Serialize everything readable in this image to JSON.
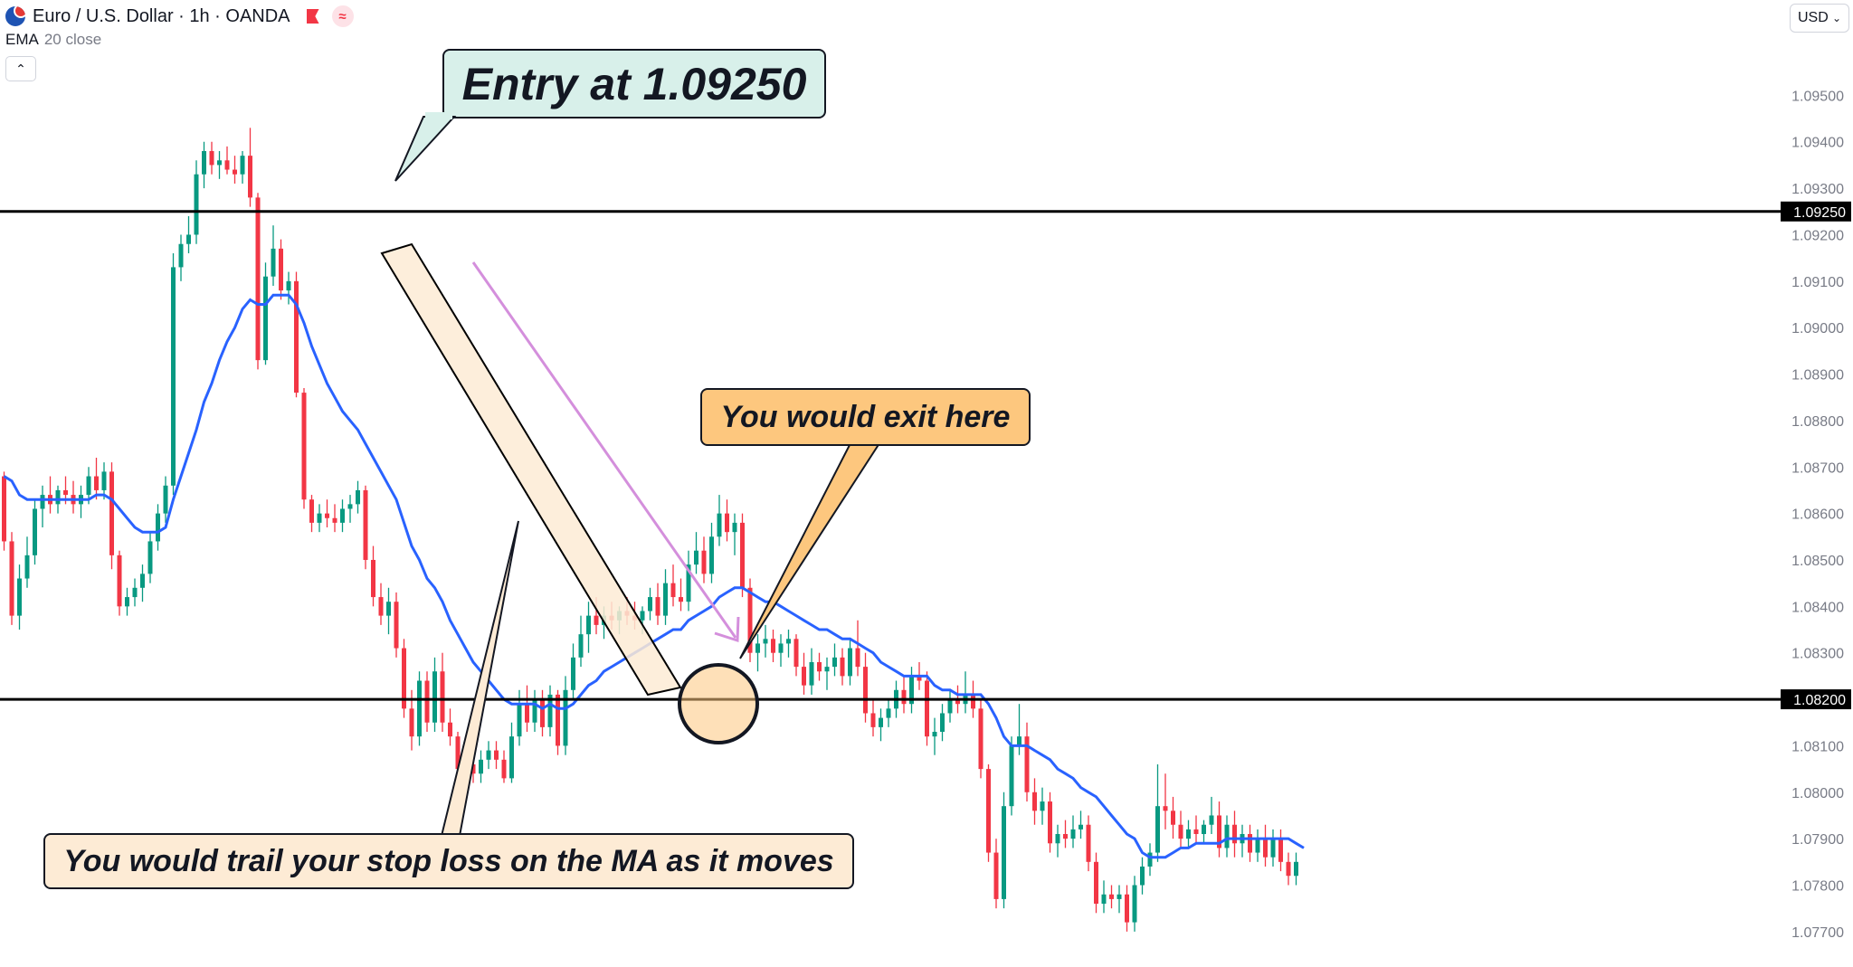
{
  "header": {
    "symbol_title": "Euro / U.S. Dollar · 1h · OANDA",
    "indicator_name": "EMA",
    "indicator_params": "20 close",
    "currency": "USD",
    "flag_icon": "eu-us-flag-icon",
    "bookmark_icon": "flag-icon",
    "indicator_icon": "wave-icon"
  },
  "annotations": {
    "entry": "Entry at 1.09250",
    "exit": "You would exit here",
    "trail": "You would trail your stop loss on the MA as it moves"
  },
  "colors": {
    "up": "#089981",
    "down": "#f23645",
    "ema": "#2962ff",
    "level_line": "#000000",
    "arrow": "#d48fdc",
    "entry_callout": "#d8f0ea",
    "exit_callout": "#fdc77e",
    "trail_callout": "#fdebd5",
    "channel_fill": "#fdebd5"
  },
  "chart_data": {
    "type": "candlestick",
    "title": "Euro / U.S. Dollar · 1h · OANDA",
    "y_ticks": [
      "1.09500",
      "1.09400",
      "1.09300",
      "1.09200",
      "1.09100",
      "1.09000",
      "1.08900",
      "1.08800",
      "1.08700",
      "1.08600",
      "1.08500",
      "1.08400",
      "1.08300",
      "1.08100",
      "1.08000",
      "1.07900",
      "1.07800",
      "1.07700"
    ],
    "ylim": [
      1.0769,
      1.09565
    ],
    "horizontal_levels": [
      {
        "value": 1.0925,
        "label": "1.09250"
      },
      {
        "value": 1.082,
        "label": "1.08200"
      }
    ],
    "candles": [
      [
        1.0868,
        1.0869,
        1.0852,
        1.0854
      ],
      [
        1.0854,
        1.0856,
        1.0836,
        1.0838
      ],
      [
        1.0838,
        1.0849,
        1.0835,
        1.0846
      ],
      [
        1.0846,
        1.0855,
        1.0844,
        1.0851
      ],
      [
        1.0851,
        1.0863,
        1.0849,
        1.0861
      ],
      [
        1.0861,
        1.0866,
        1.0857,
        1.0864
      ],
      [
        1.0864,
        1.0868,
        1.086,
        1.0862
      ],
      [
        1.0862,
        1.0866,
        1.086,
        1.0865
      ],
      [
        1.0865,
        1.0868,
        1.0862,
        1.0864
      ],
      [
        1.0864,
        1.0867,
        1.086,
        1.0862
      ],
      [
        1.0862,
        1.0866,
        1.0859,
        1.0864
      ],
      [
        1.0864,
        1.087,
        1.0862,
        1.0868
      ],
      [
        1.0868,
        1.0872,
        1.0863,
        1.0865
      ],
      [
        1.0865,
        1.0871,
        1.0863,
        1.0869
      ],
      [
        1.0869,
        1.0871,
        1.0848,
        1.0851
      ],
      [
        1.0851,
        1.0852,
        1.0838,
        1.084
      ],
      [
        1.084,
        1.0844,
        1.0838,
        1.0842
      ],
      [
        1.0842,
        1.0846,
        1.084,
        1.0844
      ],
      [
        1.0844,
        1.0849,
        1.0841,
        1.0847
      ],
      [
        1.0847,
        1.0856,
        1.0845,
        1.0854
      ],
      [
        1.0854,
        1.0862,
        1.0852,
        1.086
      ],
      [
        1.086,
        1.0868,
        1.0858,
        1.0866
      ],
      [
        1.0866,
        1.0916,
        1.0864,
        1.0913
      ],
      [
        1.0913,
        1.092,
        1.091,
        1.0918
      ],
      [
        1.0918,
        1.0924,
        1.0916,
        1.092
      ],
      [
        1.092,
        1.0936,
        1.0918,
        1.0933
      ],
      [
        1.0933,
        1.094,
        1.093,
        1.0938
      ],
      [
        1.0938,
        1.094,
        1.0933,
        1.0935
      ],
      [
        1.0935,
        1.0938,
        1.0932,
        1.0936
      ],
      [
        1.0936,
        1.0939,
        1.0933,
        1.0934
      ],
      [
        1.0934,
        1.0937,
        1.0931,
        1.0933
      ],
      [
        1.0933,
        1.0938,
        1.0931,
        1.0937
      ],
      [
        1.0937,
        1.0943,
        1.0926,
        1.0928
      ],
      [
        1.0928,
        1.0929,
        1.0891,
        1.0893
      ],
      [
        1.0893,
        1.0914,
        1.0892,
        1.0911
      ],
      [
        1.0911,
        1.0922,
        1.0909,
        1.0917
      ],
      [
        1.0917,
        1.0919,
        1.0906,
        1.0908
      ],
      [
        1.0908,
        1.0912,
        1.0905,
        1.091
      ],
      [
        1.091,
        1.0912,
        1.0885,
        1.0886
      ],
      [
        1.0886,
        1.0887,
        1.0861,
        1.0863
      ],
      [
        1.0863,
        1.0864,
        1.0856,
        1.0858
      ],
      [
        1.0858,
        1.0862,
        1.0856,
        1.086
      ],
      [
        1.086,
        1.0863,
        1.0857,
        1.0859
      ],
      [
        1.0859,
        1.0862,
        1.0856,
        1.0858
      ],
      [
        1.0858,
        1.0863,
        1.0856,
        1.0861
      ],
      [
        1.0861,
        1.0864,
        1.0858,
        1.0862
      ],
      [
        1.0862,
        1.0867,
        1.086,
        1.0865
      ],
      [
        1.0865,
        1.0866,
        1.0848,
        1.085
      ],
      [
        1.085,
        1.0853,
        1.084,
        1.0842
      ],
      [
        1.0842,
        1.0845,
        1.0836,
        1.0838
      ],
      [
        1.0838,
        1.0844,
        1.0834,
        1.0841
      ],
      [
        1.0841,
        1.0843,
        1.0829,
        1.0831
      ],
      [
        1.0831,
        1.0833,
        1.0816,
        1.0818
      ],
      [
        1.0818,
        1.0822,
        1.0809,
        1.0812
      ],
      [
        1.0812,
        1.0826,
        1.081,
        1.0824
      ],
      [
        1.0824,
        1.0826,
        1.0813,
        1.0815
      ],
      [
        1.0815,
        1.0829,
        1.0813,
        1.0826
      ],
      [
        1.0826,
        1.083,
        1.0813,
        1.0815
      ],
      [
        1.0815,
        1.0818,
        1.081,
        1.0812
      ],
      [
        1.0812,
        1.0813,
        1.0802,
        1.0805
      ],
      [
        1.0805,
        1.0808,
        1.0803,
        1.0806
      ],
      [
        1.0806,
        1.0809,
        1.0802,
        1.0804
      ],
      [
        1.0804,
        1.0809,
        1.0802,
        1.0807
      ],
      [
        1.0807,
        1.0811,
        1.0805,
        1.0809
      ],
      [
        1.0809,
        1.0811,
        1.0805,
        1.0807
      ],
      [
        1.0807,
        1.0809,
        1.0802,
        1.0803
      ],
      [
        1.0803,
        1.0815,
        1.0802,
        1.0812
      ],
      [
        1.0812,
        1.0822,
        1.081,
        1.0819
      ],
      [
        1.0819,
        1.0823,
        1.0813,
        1.0815
      ],
      [
        1.0815,
        1.0822,
        1.0813,
        1.082
      ],
      [
        1.082,
        1.0822,
        1.0812,
        1.0814
      ],
      [
        1.0814,
        1.0823,
        1.0812,
        1.0821
      ],
      [
        1.0821,
        1.0822,
        1.0808,
        1.081
      ],
      [
        1.081,
        1.0825,
        1.0808,
        1.0822
      ],
      [
        1.0822,
        1.0832,
        1.082,
        1.0829
      ],
      [
        1.0829,
        1.0838,
        1.0827,
        1.0834
      ],
      [
        1.0834,
        1.0841,
        1.083,
        1.0838
      ],
      [
        1.0838,
        1.0842,
        1.0834,
        1.0836
      ],
      [
        1.0836,
        1.084,
        1.0833,
        1.0838
      ],
      [
        1.0838,
        1.0841,
        1.0835,
        1.0837
      ],
      [
        1.0837,
        1.084,
        1.0834,
        1.0839
      ],
      [
        1.0839,
        1.0842,
        1.0836,
        1.0838
      ],
      [
        1.0838,
        1.0841,
        1.0835,
        1.0837
      ],
      [
        1.0837,
        1.084,
        1.0834,
        1.0839
      ],
      [
        1.0839,
        1.0844,
        1.0837,
        1.0842
      ],
      [
        1.0842,
        1.0845,
        1.0836,
        1.0838
      ],
      [
        1.0838,
        1.0848,
        1.0836,
        1.0845
      ],
      [
        1.0845,
        1.0849,
        1.084,
        1.0842
      ],
      [
        1.0842,
        1.0846,
        1.0839,
        1.0841
      ],
      [
        1.0841,
        1.0852,
        1.0839,
        1.0849
      ],
      [
        1.0849,
        1.0856,
        1.0847,
        1.0852
      ],
      [
        1.0852,
        1.0855,
        1.0845,
        1.0847
      ],
      [
        1.0847,
        1.0858,
        1.0845,
        1.0855
      ],
      [
        1.0855,
        1.0864,
        1.0853,
        1.086
      ],
      [
        1.086,
        1.0863,
        1.0854,
        1.0856
      ],
      [
        1.0856,
        1.086,
        1.0851,
        1.0858
      ],
      [
        1.0858,
        1.086,
        1.0842,
        1.0844
      ],
      [
        1.0844,
        1.0846,
        1.0828,
        1.083
      ],
      [
        1.083,
        1.0834,
        1.0826,
        1.0832
      ],
      [
        1.0832,
        1.0836,
        1.0829,
        1.0833
      ],
      [
        1.0833,
        1.0835,
        1.0828,
        1.083
      ],
      [
        1.083,
        1.0834,
        1.0827,
        1.0832
      ],
      [
        1.0832,
        1.0835,
        1.0829,
        1.0833
      ],
      [
        1.0833,
        1.0834,
        1.0825,
        1.0827
      ],
      [
        1.0827,
        1.083,
        1.0821,
        1.0823
      ],
      [
        1.0823,
        1.0831,
        1.0821,
        1.0828
      ],
      [
        1.0828,
        1.083,
        1.0824,
        1.0826
      ],
      [
        1.0826,
        1.0829,
        1.0822,
        1.0827
      ],
      [
        1.0827,
        1.0832,
        1.0825,
        1.0829
      ],
      [
        1.0829,
        1.0831,
        1.0823,
        1.0825
      ],
      [
        1.0825,
        1.0833,
        1.0823,
        1.0831
      ],
      [
        1.0831,
        1.0837,
        1.0825,
        1.0827
      ],
      [
        1.0827,
        1.083,
        1.0815,
        1.0817
      ],
      [
        1.0817,
        1.082,
        1.0812,
        1.0814
      ],
      [
        1.0814,
        1.0818,
        1.0811,
        1.0816
      ],
      [
        1.0816,
        1.082,
        1.0814,
        1.0818
      ],
      [
        1.0818,
        1.0824,
        1.0816,
        1.0822
      ],
      [
        1.0822,
        1.0825,
        1.0817,
        1.0819
      ],
      [
        1.0819,
        1.0827,
        1.0817,
        1.0825
      ],
      [
        1.0825,
        1.0828,
        1.0822,
        1.0824
      ],
      [
        1.0824,
        1.0826,
        1.081,
        1.0812
      ],
      [
        1.0812,
        1.0816,
        1.0808,
        1.0813
      ],
      [
        1.0813,
        1.0819,
        1.0811,
        1.0817
      ],
      [
        1.0817,
        1.0822,
        1.0815,
        1.082
      ],
      [
        1.082,
        1.0823,
        1.0817,
        1.0819
      ],
      [
        1.0819,
        1.0826,
        1.0817,
        1.0821
      ],
      [
        1.0821,
        1.0824,
        1.0816,
        1.0818
      ],
      [
        1.0818,
        1.082,
        1.0803,
        1.0805
      ],
      [
        1.0805,
        1.0806,
        1.0785,
        1.0787
      ],
      [
        1.0787,
        1.079,
        1.0775,
        1.0777
      ],
      [
        1.0777,
        1.08,
        1.0775,
        1.0797
      ],
      [
        1.0797,
        1.0812,
        1.0795,
        1.081
      ],
      [
        1.081,
        1.0819,
        1.0808,
        1.0812
      ],
      [
        1.0812,
        1.0815,
        1.0798,
        1.08
      ],
      [
        1.08,
        1.0803,
        1.0793,
        1.0796
      ],
      [
        1.0796,
        1.0801,
        1.0793,
        1.0798
      ],
      [
        1.0798,
        1.08,
        1.0787,
        1.0789
      ],
      [
        1.0789,
        1.0793,
        1.0786,
        1.0791
      ],
      [
        1.0791,
        1.0794,
        1.0788,
        1.079
      ],
      [
        1.079,
        1.0795,
        1.0788,
        1.0792
      ],
      [
        1.0792,
        1.0796,
        1.079,
        1.0793
      ],
      [
        1.0793,
        1.0795,
        1.0783,
        1.0785
      ],
      [
        1.0785,
        1.0787,
        1.0774,
        1.0776
      ],
      [
        1.0776,
        1.0781,
        1.0774,
        1.0778
      ],
      [
        1.0778,
        1.078,
        1.0775,
        1.0777
      ],
      [
        1.0777,
        1.078,
        1.0774,
        1.0778
      ],
      [
        1.0778,
        1.078,
        1.077,
        1.0772
      ],
      [
        1.0772,
        1.0782,
        1.077,
        1.078
      ],
      [
        1.078,
        1.0786,
        1.0778,
        1.0784
      ],
      [
        1.0784,
        1.0789,
        1.0782,
        1.0787
      ],
      [
        1.0787,
        1.0806,
        1.0785,
        1.0797
      ],
      [
        1.0797,
        1.0804,
        1.0792,
        1.0796
      ],
      [
        1.0796,
        1.0799,
        1.079,
        1.0793
      ],
      [
        1.0793,
        1.0796,
        1.0788,
        1.079
      ],
      [
        1.079,
        1.0794,
        1.0788,
        1.0792
      ],
      [
        1.0792,
        1.0795,
        1.0789,
        1.0791
      ],
      [
        1.0791,
        1.0794,
        1.0789,
        1.0793
      ],
      [
        1.0793,
        1.0799,
        1.0791,
        1.0795
      ],
      [
        1.0795,
        1.0798,
        1.0786,
        1.0788
      ],
      [
        1.0788,
        1.0795,
        1.0786,
        1.0793
      ],
      [
        1.0793,
        1.0796,
        1.0786,
        1.0789
      ],
      [
        1.0789,
        1.0793,
        1.0786,
        1.0791
      ],
      [
        1.0791,
        1.0793,
        1.0785,
        1.0787
      ],
      [
        1.0787,
        1.0792,
        1.0785,
        1.079
      ],
      [
        1.079,
        1.0793,
        1.0784,
        1.0786
      ],
      [
        1.0786,
        1.0792,
        1.0784,
        1.079
      ],
      [
        1.079,
        1.0792,
        1.0783,
        1.0785
      ],
      [
        1.0785,
        1.0787,
        1.078,
        1.0782
      ],
      [
        1.0782,
        1.0787,
        1.078,
        1.0785
      ]
    ],
    "ema20": [
      1.0868,
      1.0867,
      1.0864,
      1.0863,
      1.0863,
      1.0863,
      1.0863,
      1.0863,
      1.0863,
      1.0863,
      1.0863,
      1.0863,
      1.0864,
      1.0864,
      1.0863,
      1.0861,
      1.0859,
      1.0857,
      1.0856,
      1.0856,
      1.0856,
      1.0857,
      1.0863,
      1.0868,
      1.0873,
      1.0878,
      1.0884,
      1.0888,
      1.0893,
      1.0897,
      1.09,
      1.0904,
      1.0906,
      1.0905,
      1.0905,
      1.0907,
      1.0907,
      1.0907,
      1.0905,
      1.0901,
      1.0896,
      1.0892,
      1.0888,
      1.0885,
      1.0882,
      1.088,
      1.0878,
      1.0875,
      1.0872,
      1.0869,
      1.0866,
      1.0863,
      1.0858,
      1.0853,
      1.085,
      1.0846,
      1.0844,
      1.0841,
      1.0837,
      1.0834,
      1.0831,
      1.0828,
      1.0826,
      1.0824,
      1.0822,
      1.082,
      1.0819,
      1.0819,
      1.0819,
      1.0819,
      1.0818,
      1.0819,
      1.0818,
      1.0818,
      1.0819,
      1.0821,
      1.0823,
      1.0824,
      1.0826,
      1.0827,
      1.0828,
      1.0829,
      1.083,
      1.0831,
      1.0832,
      1.0833,
      1.0834,
      1.0835,
      1.0835,
      1.0837,
      1.0838,
      1.0839,
      1.084,
      1.0842,
      1.0843,
      1.0844,
      1.0844,
      1.0843,
      1.0842,
      1.0841,
      1.0841,
      1.084,
      1.0839,
      1.0838,
      1.0837,
      1.0836,
      1.0835,
      1.0835,
      1.0834,
      1.0833,
      1.0833,
      1.0832,
      1.0831,
      1.083,
      1.0828,
      1.0827,
      1.0826,
      1.0825,
      1.0825,
      1.0825,
      1.0825,
      1.0823,
      1.0822,
      1.0822,
      1.0821,
      1.0821,
      1.0821,
      1.0821,
      1.0819,
      1.0816,
      1.0812,
      1.081,
      1.081,
      1.081,
      1.0809,
      1.0808,
      1.0807,
      1.0805,
      1.0804,
      1.0803,
      1.0801,
      1.08,
      1.0799,
      1.0797,
      1.0795,
      1.0793,
      1.0791,
      1.079,
      1.0787,
      1.0786,
      1.0786,
      1.0786,
      1.0787,
      1.0788,
      1.0788,
      1.0789,
      1.0789,
      1.0789,
      1.0789,
      1.079,
      1.079,
      1.079,
      1.079,
      1.079,
      1.079,
      1.079,
      1.079,
      1.079,
      1.0789,
      1.0788
    ]
  }
}
